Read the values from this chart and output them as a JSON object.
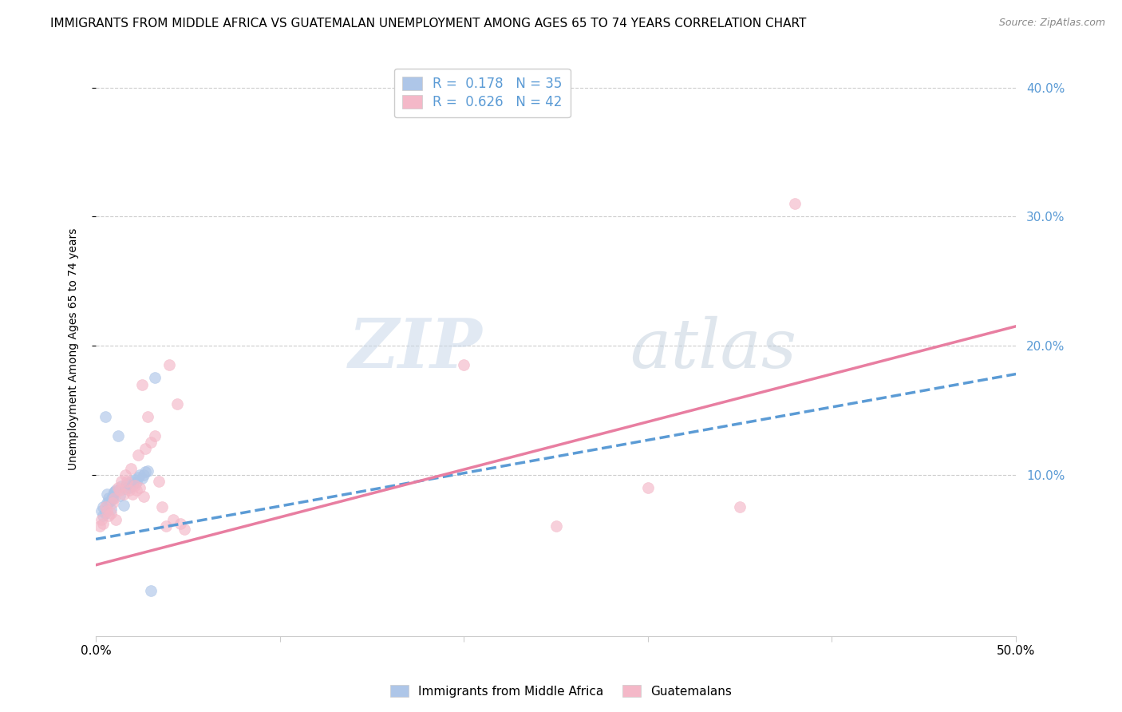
{
  "title": "IMMIGRANTS FROM MIDDLE AFRICA VS GUATEMALAN UNEMPLOYMENT AMONG AGES 65 TO 74 YEARS CORRELATION CHART",
  "source": "Source: ZipAtlas.com",
  "ylabel": "Unemployment Among Ages 65 to 74 years",
  "ytick_values": [
    0.1,
    0.2,
    0.3,
    0.4
  ],
  "ytick_labels": [
    "10.0%",
    "20.0%",
    "30.0%",
    "40.0%"
  ],
  "xlim": [
    0.0,
    0.5
  ],
  "ylim": [
    -0.025,
    0.42
  ],
  "legend_entries": [
    {
      "label": "R =  0.178   N = 35",
      "facecolor": "#aec6e8",
      "edgecolor": "#7bafd4"
    },
    {
      "label": "R =  0.626   N = 42",
      "facecolor": "#f4b8c8",
      "edgecolor": "#e87ea1"
    }
  ],
  "blue_scatter_x": [
    0.003,
    0.004,
    0.004,
    0.005,
    0.005,
    0.006,
    0.006,
    0.007,
    0.007,
    0.008,
    0.008,
    0.009,
    0.009,
    0.01,
    0.01,
    0.011,
    0.012,
    0.013,
    0.014,
    0.015,
    0.016,
    0.017,
    0.018,
    0.019,
    0.02,
    0.021,
    0.022,
    0.023,
    0.024,
    0.025,
    0.026,
    0.027,
    0.028,
    0.03,
    0.032
  ],
  "blue_scatter_y": [
    0.072,
    0.068,
    0.075,
    0.145,
    0.07,
    0.085,
    0.078,
    0.082,
    0.079,
    0.073,
    0.08,
    0.081,
    0.083,
    0.087,
    0.086,
    0.088,
    0.13,
    0.084,
    0.091,
    0.076,
    0.089,
    0.093,
    0.09,
    0.095,
    0.092,
    0.096,
    0.094,
    0.098,
    0.1,
    0.097,
    0.1,
    0.102,
    0.103,
    0.01,
    0.175
  ],
  "pink_scatter_x": [
    0.002,
    0.003,
    0.004,
    0.005,
    0.006,
    0.007,
    0.008,
    0.009,
    0.01,
    0.011,
    0.012,
    0.013,
    0.014,
    0.015,
    0.016,
    0.017,
    0.018,
    0.019,
    0.02,
    0.021,
    0.022,
    0.023,
    0.024,
    0.025,
    0.026,
    0.027,
    0.028,
    0.03,
    0.032,
    0.034,
    0.036,
    0.038,
    0.04,
    0.042,
    0.044,
    0.046,
    0.048,
    0.38,
    0.2,
    0.25,
    0.3,
    0.35
  ],
  "pink_scatter_y": [
    0.06,
    0.065,
    0.062,
    0.075,
    0.072,
    0.068,
    0.07,
    0.078,
    0.082,
    0.065,
    0.09,
    0.088,
    0.095,
    0.085,
    0.1,
    0.095,
    0.088,
    0.105,
    0.085,
    0.092,
    0.088,
    0.115,
    0.09,
    0.17,
    0.083,
    0.12,
    0.145,
    0.125,
    0.13,
    0.095,
    0.075,
    0.06,
    0.185,
    0.065,
    0.155,
    0.062,
    0.058,
    0.31,
    0.185,
    0.06,
    0.09,
    0.075
  ],
  "blue_line_x": [
    0.0,
    0.5
  ],
  "blue_line_y": [
    0.05,
    0.178
  ],
  "pink_line_x": [
    0.0,
    0.5
  ],
  "pink_line_y": [
    0.03,
    0.215
  ],
  "watermark_zip": "ZIP",
  "watermark_atlas": "atlas",
  "background_color": "#ffffff",
  "scatter_size": 100,
  "scatter_alpha": 0.65,
  "grid_color": "#cccccc",
  "title_fontsize": 11,
  "axis_label_fontsize": 10,
  "tick_fontsize": 11,
  "legend_fontsize": 12,
  "blue_line_color": "#5b9bd5",
  "pink_line_color": "#e87ea1",
  "right_tick_color": "#5b9bd5"
}
